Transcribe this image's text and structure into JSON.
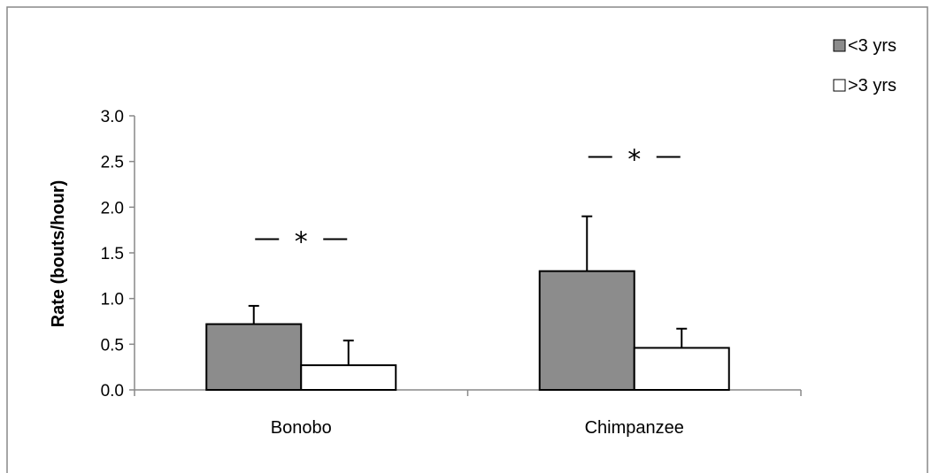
{
  "chart_data": {
    "type": "bar",
    "categories": [
      "Bonobo",
      "Chimpanzee"
    ],
    "series": [
      {
        "name": "<3 yrs",
        "values": [
          0.72,
          1.3
        ],
        "errors": [
          0.2,
          0.6
        ],
        "color": "#8c8c8c"
      },
      {
        "name": ">3 yrs",
        "values": [
          0.27,
          0.46
        ],
        "errors": [
          0.27,
          0.21
        ],
        "color": "#ffffff"
      }
    ],
    "title": "",
    "xlabel": "",
    "ylabel": "Rate (bouts/hour)",
    "ylim": [
      0,
      3.0
    ],
    "yticks": [
      "0.0",
      "0.5",
      "1.0",
      "1.5",
      "2.0",
      "2.5",
      "3.0"
    ],
    "annotations": [
      {
        "category": "Bonobo",
        "text": "*",
        "y": 1.65
      },
      {
        "category": "Chimpanzee",
        "text": "*",
        "y": 2.55
      }
    ],
    "legend": "top-right",
    "grid": false
  }
}
